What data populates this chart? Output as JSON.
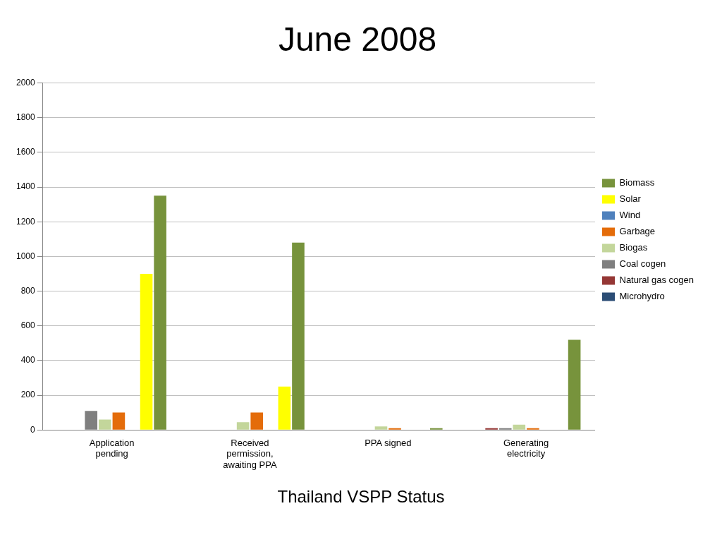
{
  "chart_data": {
    "type": "bar",
    "title": "June 2008",
    "categories": [
      "Application pending",
      "Received permission, awaiting PPA",
      "PPA signed",
      "Generating electricity"
    ],
    "series": [
      {
        "name": "Microhydro",
        "color": "#2c4d75",
        "values": [
          0,
          0,
          0,
          0
        ]
      },
      {
        "name": "Natural gas cogen",
        "color": "#953735",
        "values": [
          0,
          0,
          0,
          10
        ]
      },
      {
        "name": "Coal cogen",
        "color": "#7f7f7f",
        "values": [
          110,
          0,
          0,
          10
        ]
      },
      {
        "name": "Biogas",
        "color": "#c3d69b",
        "values": [
          60,
          45,
          20,
          30
        ]
      },
      {
        "name": "Garbage",
        "color": "#e46c0a",
        "values": [
          100,
          100,
          10,
          10
        ]
      },
      {
        "name": "Wind",
        "color": "#4f81bd",
        "values": [
          0,
          0,
          0,
          0
        ]
      },
      {
        "name": "Solar",
        "color": "#ffff00",
        "values": [
          900,
          250,
          0,
          0
        ]
      },
      {
        "name": "Biomass",
        "color": "#77933c",
        "values": [
          1350,
          1080,
          10,
          520
        ]
      }
    ],
    "ylim": [
      0,
      2000
    ],
    "yticks": [
      0,
      200,
      400,
      600,
      800,
      1000,
      1200,
      1400,
      1600,
      1800,
      2000
    ],
    "grid": "y",
    "legend": "right",
    "annotations": [
      "Thailand VSPP Status"
    ]
  }
}
